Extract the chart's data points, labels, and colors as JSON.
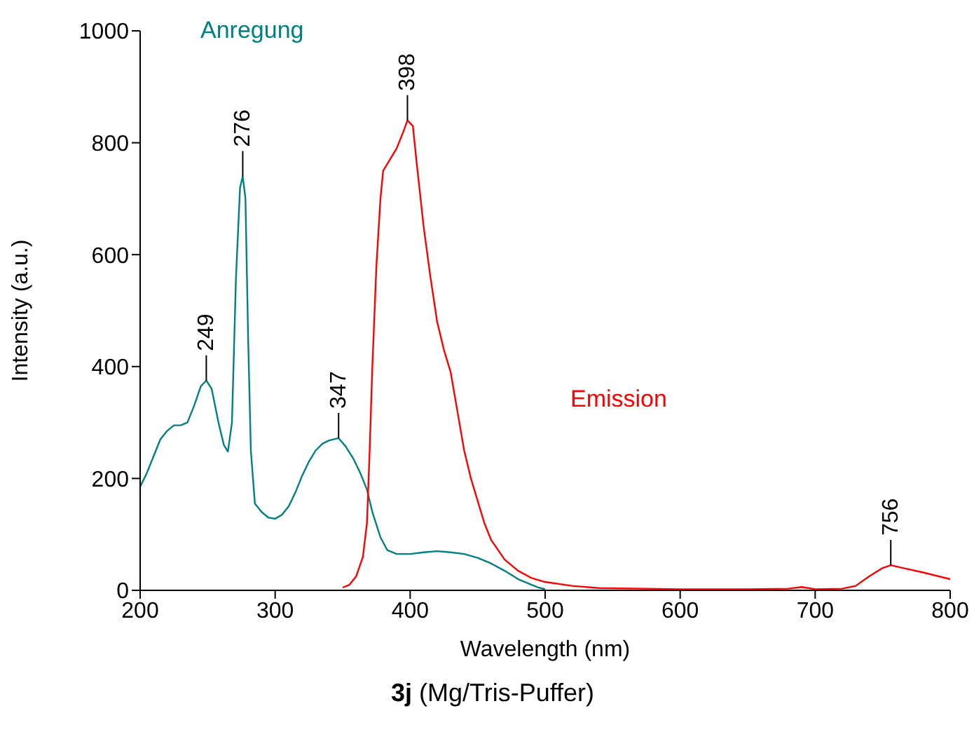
{
  "chart_data": {
    "type": "line",
    "title": "3j (Mg/Tris-Puffer)",
    "xlabel": "Wavelength (nm)",
    "ylabel": "Intensity (a.u.)",
    "xlim": [
      200,
      800
    ],
    "xticks": [
      200,
      300,
      400,
      500,
      600,
      700,
      800
    ],
    "ylim": [
      0,
      1000
    ],
    "yticks": [
      0,
      200,
      400,
      600,
      800,
      1000
    ],
    "marker": "none",
    "line_style": "solid",
    "series": [
      {
        "name": "Anregung",
        "color": "#008080",
        "x": [
          200,
          205,
          210,
          215,
          220,
          225,
          230,
          235,
          240,
          245,
          249,
          253,
          258,
          262,
          265,
          268,
          271,
          274,
          276,
          278,
          280,
          282,
          285,
          290,
          295,
          300,
          305,
          310,
          315,
          320,
          325,
          330,
          335,
          340,
          347,
          352,
          358,
          363,
          368,
          372,
          378,
          383,
          390,
          400,
          410,
          420,
          430,
          440,
          450,
          460,
          470,
          480,
          490,
          495,
          500
        ],
        "values": [
          185,
          210,
          240,
          270,
          285,
          295,
          295,
          300,
          330,
          365,
          375,
          360,
          300,
          260,
          248,
          300,
          560,
          720,
          740,
          700,
          450,
          250,
          155,
          140,
          130,
          128,
          135,
          150,
          175,
          205,
          230,
          250,
          262,
          268,
          272,
          258,
          235,
          210,
          180,
          140,
          95,
          72,
          65,
          65,
          68,
          70,
          68,
          65,
          58,
          48,
          35,
          20,
          10,
          5,
          2
        ]
      },
      {
        "name": "Emission",
        "color": "#ff0000",
        "x": [
          350,
          355,
          360,
          365,
          368,
          370,
          372,
          375,
          378,
          380,
          385,
          390,
          395,
          398,
          402,
          405,
          410,
          415,
          420,
          425,
          430,
          435,
          440,
          445,
          450,
          455,
          460,
          470,
          480,
          490,
          500,
          520,
          540,
          600,
          650,
          680,
          690,
          695,
          700,
          720,
          730,
          740,
          750,
          756,
          765,
          780,
          800
        ],
        "values": [
          5,
          10,
          25,
          60,
          120,
          250,
          400,
          580,
          700,
          750,
          770,
          790,
          820,
          840,
          830,
          760,
          650,
          560,
          480,
          430,
          390,
          320,
          250,
          200,
          160,
          120,
          90,
          55,
          35,
          22,
          15,
          8,
          4,
          2,
          2,
          3,
          6,
          4,
          2,
          3,
          8,
          25,
          40,
          45,
          40,
          32,
          20
        ]
      }
    ],
    "annotations": [
      {
        "text": "249",
        "x": 249,
        "y": 375
      },
      {
        "text": "276",
        "x": 276,
        "y": 740
      },
      {
        "text": "347",
        "x": 347,
        "y": 272
      },
      {
        "text": "398",
        "x": 398,
        "y": 840
      },
      {
        "text": "756",
        "x": 756,
        "y": 45
      }
    ]
  }
}
